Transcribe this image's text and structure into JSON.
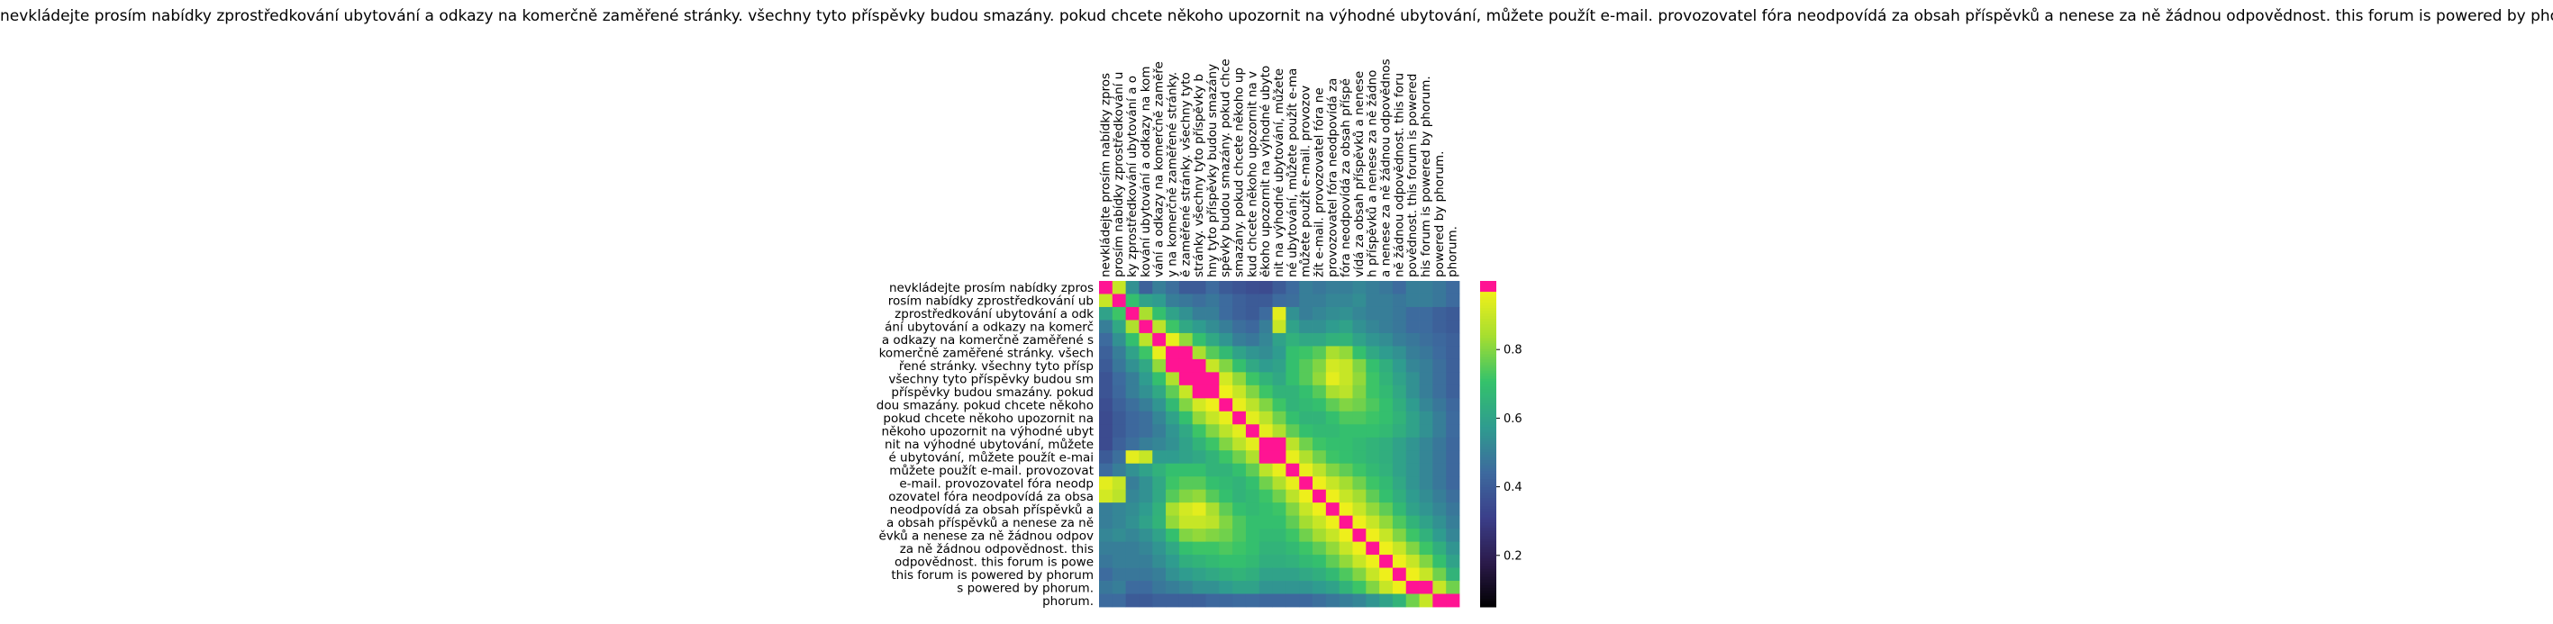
{
  "chart_data": {
    "type": "heatmap",
    "title": "nevkládejte prosím nabídky zprostředkování ubytování a odkazy na komerčně zaměřené stránky. všechny tyto příspěvky budou smazány. pokud chcete někoho upozornit na výhodné ubytování, můžete použít e-mail. provozovatel fóra neodpovídá za obsah příspěvků a nenese za ně žádnou odpovědnost. this forum is powered by phorum.",
    "xlabel": "",
    "ylabel": "",
    "x_tick_labels": [
      "nevkládejte prosím nabídky zpros",
      "prosím nabídky zprostředkování u",
      "ky zprostředkování ubytování a o",
      "kování ubytování a odkazy na kom",
      "vání a odkazy na komerčně zaměře",
      "y na komerčně zaměřené stránky.",
      "ě zaměřené stránky. všechny tyto",
      "stránky. všechny tyto příspěvky b",
      "hny tyto příspěvky budou smazány",
      "spěvky budou smazány. pokud chce",
      "smazány. pokud chcete někoho up",
      "kud chcete někoho upozornit na v",
      "ěkoho upozornit na výhodné ubyto",
      "nit na výhodné ubytování, můžete",
      "né ubytování, můžete použít e-ma",
      "můžete použít e-mail. provozov",
      "žít e-mail. provozovatel fóra ne",
      "provozovatel fóra neodpovídá za",
      "fóra neodpovídá za obsah příspě",
      "vídá za obsah příspěvků a nenese",
      "h příspěvků a nenese za ně žádno",
      "a nenese za ně žádnou odpovědnos",
      "ně žádnou odpovědnost. this foru",
      "povědnost. this forum is powered",
      "his forum is powered by phorum.",
      "powered by phorum.",
      "phorum."
    ],
    "y_tick_labels": [
      "nevkládejte prosím nabídky zpros",
      "rosím nabídky zprostředkování ub",
      "zprostředkování ubytování a odk",
      "ání ubytování a odkazy na komerč",
      "a odkazy na komerčně zaměřené s",
      "komerčně zaměřené stránky. všech",
      "řené stránky. všechny tyto přísp",
      "všechny tyto příspěvky budou sm",
      "příspěvky budou smazány. pokud",
      "dou smazány. pokud chcete někoho",
      "pokud chcete někoho upozornit na",
      "někoho upozornit na výhodné ubyt",
      "nit na výhodné ubytování, můžete",
      "é ubytování, můžete použít e-mai",
      "můžete použít e-mail. provozovat",
      "e-mail. provozovatel fóra neodp",
      "ozovatel fóra neodpovídá za obsa",
      "neodpovídá za obsah příspěvků a",
      "a obsah příspěvků a nenese za ně",
      "ěvků a nenese za ně žádnou odpov",
      "za ně žádnou odpovědnost. this",
      "odpovědnost. this forum is powe",
      "this forum is powered by phorum",
      "s powered by phorum.",
      "phorum."
    ],
    "colorbar": {
      "ticks": [
        0.2,
        0.4,
        0.6,
        0.8
      ],
      "tick_labels": [
        "0.2",
        "0.4",
        "0.6",
        "0.8"
      ],
      "range": [
        0.05,
        1.0
      ],
      "colormap": [
        "#000000",
        "#2b1a4a",
        "#3b3f8a",
        "#3d6a9e",
        "#2f9c8f",
        "#34c26b",
        "#a6de30",
        "#f1f01a",
        "#ff1493"
      ]
    },
    "values": [
      [
        1.0,
        0.9,
        0.55,
        0.42,
        0.5,
        0.46,
        0.4,
        0.4,
        0.45,
        0.4,
        0.38,
        0.36,
        0.35,
        0.4,
        0.45,
        0.5,
        0.48,
        0.5,
        0.5,
        0.52,
        0.5,
        0.48,
        0.45,
        0.5,
        0.5,
        0.48,
        0.45
      ],
      [
        0.9,
        1.0,
        0.7,
        0.6,
        0.58,
        0.5,
        0.48,
        0.46,
        0.48,
        0.45,
        0.42,
        0.4,
        0.4,
        0.45,
        0.46,
        0.5,
        0.5,
        0.52,
        0.52,
        0.54,
        0.5,
        0.5,
        0.48,
        0.5,
        0.5,
        0.48,
        0.45
      ],
      [
        0.6,
        0.72,
        1.0,
        0.85,
        0.7,
        0.6,
        0.55,
        0.5,
        0.5,
        0.45,
        0.42,
        0.4,
        0.45,
        0.95,
        0.55,
        0.5,
        0.52,
        0.54,
        0.55,
        0.52,
        0.5,
        0.5,
        0.48,
        0.45,
        0.45,
        0.42,
        0.4
      ],
      [
        0.5,
        0.62,
        0.86,
        1.0,
        0.88,
        0.72,
        0.62,
        0.58,
        0.54,
        0.5,
        0.46,
        0.44,
        0.5,
        0.9,
        0.6,
        0.55,
        0.55,
        0.58,
        0.6,
        0.55,
        0.52,
        0.5,
        0.48,
        0.45,
        0.45,
        0.42,
        0.4
      ],
      [
        0.45,
        0.55,
        0.7,
        0.88,
        1.0,
        0.96,
        0.82,
        0.7,
        0.62,
        0.56,
        0.5,
        0.48,
        0.52,
        0.6,
        0.65,
        0.62,
        0.62,
        0.65,
        0.66,
        0.6,
        0.56,
        0.54,
        0.5,
        0.48,
        0.46,
        0.44,
        0.42
      ],
      [
        0.42,
        0.5,
        0.6,
        0.72,
        0.96,
        1.0,
        0.98,
        0.85,
        0.75,
        0.68,
        0.6,
        0.56,
        0.54,
        0.58,
        0.7,
        0.72,
        0.75,
        0.85,
        0.82,
        0.7,
        0.62,
        0.58,
        0.55,
        0.5,
        0.48,
        0.45,
        0.42
      ],
      [
        0.4,
        0.48,
        0.55,
        0.62,
        0.82,
        0.98,
        1.0,
        0.98,
        0.9,
        0.8,
        0.7,
        0.62,
        0.58,
        0.6,
        0.7,
        0.75,
        0.8,
        0.92,
        0.9,
        0.8,
        0.7,
        0.64,
        0.58,
        0.52,
        0.5,
        0.46,
        0.42
      ],
      [
        0.38,
        0.45,
        0.5,
        0.58,
        0.7,
        0.86,
        0.98,
        1.0,
        0.99,
        0.92,
        0.82,
        0.72,
        0.66,
        0.62,
        0.7,
        0.75,
        0.82,
        0.95,
        0.9,
        0.82,
        0.72,
        0.66,
        0.6,
        0.55,
        0.5,
        0.46,
        0.42
      ],
      [
        0.38,
        0.44,
        0.5,
        0.55,
        0.62,
        0.76,
        0.9,
        0.99,
        1.0,
        0.97,
        0.9,
        0.8,
        0.72,
        0.66,
        0.66,
        0.7,
        0.75,
        0.85,
        0.88,
        0.8,
        0.72,
        0.68,
        0.62,
        0.55,
        0.5,
        0.46,
        0.42
      ],
      [
        0.36,
        0.42,
        0.46,
        0.5,
        0.56,
        0.68,
        0.8,
        0.92,
        0.97,
        1.0,
        0.96,
        0.88,
        0.8,
        0.72,
        0.66,
        0.68,
        0.7,
        0.76,
        0.8,
        0.78,
        0.74,
        0.7,
        0.64,
        0.58,
        0.52,
        0.48,
        0.44
      ],
      [
        0.35,
        0.4,
        0.44,
        0.46,
        0.52,
        0.6,
        0.7,
        0.82,
        0.9,
        0.96,
        1.0,
        0.95,
        0.88,
        0.78,
        0.7,
        0.66,
        0.66,
        0.7,
        0.74,
        0.74,
        0.72,
        0.7,
        0.66,
        0.6,
        0.55,
        0.5,
        0.45
      ],
      [
        0.35,
        0.4,
        0.44,
        0.46,
        0.5,
        0.56,
        0.62,
        0.72,
        0.8,
        0.88,
        0.95,
        1.0,
        0.95,
        0.86,
        0.76,
        0.7,
        0.68,
        0.68,
        0.7,
        0.7,
        0.7,
        0.68,
        0.64,
        0.6,
        0.55,
        0.5,
        0.45
      ],
      [
        0.35,
        0.42,
        0.46,
        0.5,
        0.52,
        0.55,
        0.6,
        0.66,
        0.72,
        0.8,
        0.88,
        0.95,
        1.0,
        0.98,
        0.88,
        0.78,
        0.72,
        0.7,
        0.7,
        0.68,
        0.66,
        0.64,
        0.6,
        0.56,
        0.52,
        0.48,
        0.44
      ],
      [
        0.4,
        0.46,
        0.95,
        0.9,
        0.58,
        0.58,
        0.6,
        0.62,
        0.66,
        0.72,
        0.78,
        0.86,
        0.98,
        1.0,
        0.96,
        0.86,
        0.78,
        0.72,
        0.7,
        0.68,
        0.66,
        0.64,
        0.6,
        0.56,
        0.52,
        0.48,
        0.44
      ],
      [
        0.45,
        0.5,
        0.55,
        0.6,
        0.65,
        0.7,
        0.7,
        0.7,
        0.66,
        0.66,
        0.7,
        0.76,
        0.88,
        0.96,
        1.0,
        0.96,
        0.88,
        0.8,
        0.76,
        0.72,
        0.68,
        0.65,
        0.6,
        0.56,
        0.52,
        0.48,
        0.44
      ],
      [
        0.95,
        0.9,
        0.5,
        0.55,
        0.62,
        0.72,
        0.75,
        0.75,
        0.7,
        0.68,
        0.66,
        0.7,
        0.78,
        0.86,
        0.96,
        1.0,
        0.97,
        0.9,
        0.84,
        0.78,
        0.72,
        0.68,
        0.62,
        0.56,
        0.52,
        0.48,
        0.44
      ],
      [
        0.92,
        0.88,
        0.52,
        0.55,
        0.62,
        0.75,
        0.8,
        0.82,
        0.75,
        0.7,
        0.66,
        0.68,
        0.72,
        0.78,
        0.88,
        0.97,
        1.0,
        0.97,
        0.9,
        0.84,
        0.76,
        0.7,
        0.64,
        0.58,
        0.54,
        0.5,
        0.46
      ],
      [
        0.5,
        0.52,
        0.54,
        0.58,
        0.65,
        0.85,
        0.92,
        0.95,
        0.85,
        0.76,
        0.7,
        0.68,
        0.7,
        0.72,
        0.8,
        0.9,
        0.97,
        1.0,
        0.97,
        0.9,
        0.82,
        0.76,
        0.68,
        0.6,
        0.56,
        0.52,
        0.48
      ],
      [
        0.5,
        0.52,
        0.55,
        0.6,
        0.66,
        0.82,
        0.9,
        0.9,
        0.88,
        0.8,
        0.74,
        0.7,
        0.7,
        0.7,
        0.76,
        0.84,
        0.9,
        0.97,
        1.0,
        0.97,
        0.9,
        0.82,
        0.74,
        0.66,
        0.6,
        0.55,
        0.5
      ],
      [
        0.52,
        0.54,
        0.52,
        0.55,
        0.6,
        0.7,
        0.8,
        0.82,
        0.8,
        0.78,
        0.74,
        0.7,
        0.68,
        0.68,
        0.72,
        0.78,
        0.84,
        0.9,
        0.97,
        1.0,
        0.97,
        0.9,
        0.8,
        0.72,
        0.65,
        0.58,
        0.52
      ],
      [
        0.5,
        0.5,
        0.5,
        0.52,
        0.56,
        0.62,
        0.7,
        0.72,
        0.72,
        0.74,
        0.72,
        0.7,
        0.66,
        0.66,
        0.68,
        0.72,
        0.76,
        0.82,
        0.9,
        0.97,
        1.0,
        0.97,
        0.9,
        0.8,
        0.72,
        0.64,
        0.56
      ],
      [
        0.48,
        0.5,
        0.5,
        0.5,
        0.54,
        0.58,
        0.64,
        0.66,
        0.68,
        0.7,
        0.7,
        0.68,
        0.64,
        0.64,
        0.65,
        0.68,
        0.7,
        0.76,
        0.82,
        0.9,
        0.97,
        1.0,
        0.97,
        0.9,
        0.8,
        0.7,
        0.6
      ],
      [
        0.45,
        0.48,
        0.48,
        0.48,
        0.5,
        0.55,
        0.58,
        0.6,
        0.62,
        0.64,
        0.66,
        0.64,
        0.6,
        0.6,
        0.6,
        0.62,
        0.64,
        0.68,
        0.74,
        0.8,
        0.9,
        0.97,
        1.0,
        0.97,
        0.9,
        0.78,
        0.66
      ],
      [
        0.48,
        0.5,
        0.45,
        0.45,
        0.48,
        0.5,
        0.52,
        0.55,
        0.55,
        0.58,
        0.6,
        0.6,
        0.56,
        0.56,
        0.56,
        0.56,
        0.58,
        0.6,
        0.66,
        0.72,
        0.8,
        0.9,
        0.97,
        1.0,
        0.98,
        0.9,
        0.78
      ],
      [
        0.45,
        0.45,
        0.4,
        0.4,
        0.42,
        0.42,
        0.42,
        0.42,
        0.44,
        0.44,
        0.45,
        0.45,
        0.44,
        0.44,
        0.44,
        0.44,
        0.46,
        0.48,
        0.5,
        0.52,
        0.56,
        0.6,
        0.66,
        0.78,
        0.9,
        0.98,
        1.0
      ]
    ]
  }
}
